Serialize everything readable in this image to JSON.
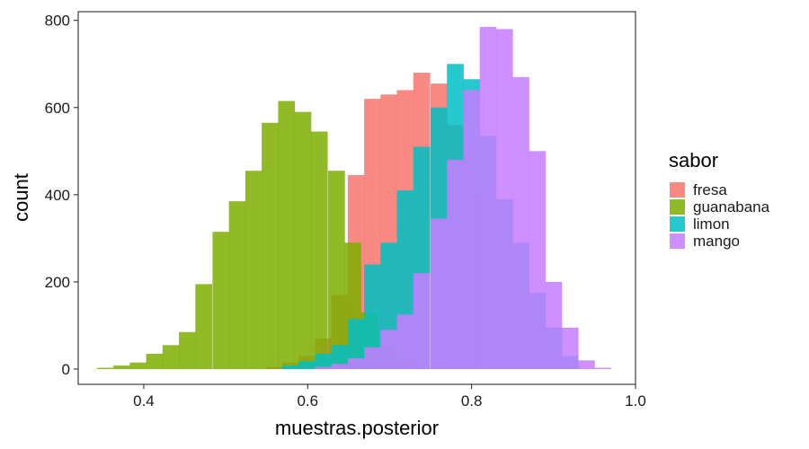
{
  "chart_data": {
    "type": "histogram",
    "xlabel": "muestras.posterior",
    "ylabel": "count",
    "xlim": [
      0.32,
      1.0
    ],
    "ylim": [
      -35,
      820
    ],
    "x_ticks": [
      0.4,
      0.6,
      0.8,
      1.0
    ],
    "x_tick_labels": [
      "0.4",
      "0.6",
      "0.8",
      "1.0"
    ],
    "y_ticks": [
      0,
      200,
      400,
      600,
      800
    ],
    "y_tick_labels": [
      "0",
      "200",
      "400",
      "600",
      "800"
    ],
    "bin_width": 0.0202,
    "legend": {
      "title": "sabor",
      "position": "right",
      "items": [
        "fresa",
        "guanabana",
        "limon",
        "mango"
      ]
    },
    "series": [
      {
        "name": "fresa",
        "color": "#F8766D",
        "bins": [
          [
            0.559,
            5
          ],
          [
            0.579,
            15
          ],
          [
            0.599,
            30
          ],
          [
            0.619,
            70
          ],
          [
            0.639,
            170
          ],
          [
            0.659,
            445
          ],
          [
            0.679,
            620
          ],
          [
            0.699,
            630
          ],
          [
            0.719,
            640
          ],
          [
            0.739,
            680
          ],
          [
            0.76,
            655
          ],
          [
            0.78,
            560
          ],
          [
            0.8,
            510
          ],
          [
            0.82,
            410
          ],
          [
            0.84,
            290
          ],
          [
            0.86,
            190
          ],
          [
            0.88,
            100
          ],
          [
            0.9,
            40
          ],
          [
            0.92,
            15
          ]
        ]
      },
      {
        "name": "guanabana",
        "color": "#7CAE00",
        "bins": [
          [
            0.353,
            3
          ],
          [
            0.373,
            8
          ],
          [
            0.393,
            15
          ],
          [
            0.413,
            35
          ],
          [
            0.433,
            55
          ],
          [
            0.453,
            85
          ],
          [
            0.473,
            195
          ],
          [
            0.494,
            315
          ],
          [
            0.514,
            385
          ],
          [
            0.534,
            455
          ],
          [
            0.554,
            565
          ],
          [
            0.574,
            615
          ],
          [
            0.594,
            590
          ],
          [
            0.614,
            545
          ],
          [
            0.635,
            455
          ],
          [
            0.655,
            290
          ],
          [
            0.675,
            130
          ],
          [
            0.695,
            55
          ],
          [
            0.715,
            15
          ]
        ]
      },
      {
        "name": "limon",
        "color": "#00BFC4",
        "bins": [
          [
            0.579,
            8
          ],
          [
            0.599,
            18
          ],
          [
            0.619,
            35
          ],
          [
            0.639,
            55
          ],
          [
            0.659,
            115
          ],
          [
            0.679,
            240
          ],
          [
            0.699,
            290
          ],
          [
            0.719,
            410
          ],
          [
            0.739,
            510
          ],
          [
            0.76,
            600
          ],
          [
            0.78,
            700
          ],
          [
            0.8,
            665
          ],
          [
            0.82,
            535
          ],
          [
            0.84,
            390
          ],
          [
            0.86,
            290
          ],
          [
            0.88,
            175
          ],
          [
            0.9,
            95
          ],
          [
            0.92,
            30
          ]
        ]
      },
      {
        "name": "mango",
        "color": "#C77CFF",
        "bins": [
          [
            0.619,
            5
          ],
          [
            0.639,
            12
          ],
          [
            0.659,
            25
          ],
          [
            0.679,
            50
          ],
          [
            0.699,
            90
          ],
          [
            0.719,
            125
          ],
          [
            0.739,
            220
          ],
          [
            0.76,
            345
          ],
          [
            0.78,
            480
          ],
          [
            0.8,
            640
          ],
          [
            0.82,
            785
          ],
          [
            0.84,
            780
          ],
          [
            0.86,
            670
          ],
          [
            0.88,
            500
          ],
          [
            0.9,
            200
          ],
          [
            0.92,
            95
          ],
          [
            0.94,
            20
          ],
          [
            0.96,
            3
          ]
        ]
      }
    ]
  }
}
